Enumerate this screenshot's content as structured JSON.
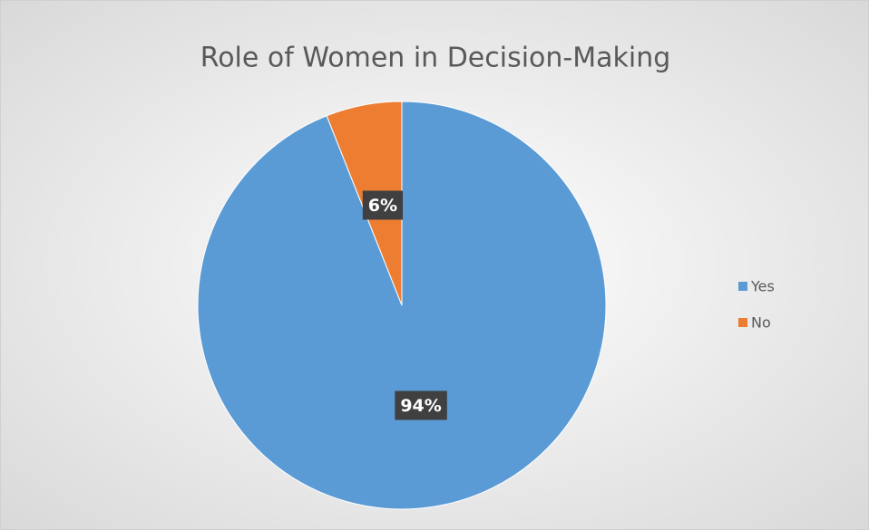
{
  "chart_data": {
    "type": "pie",
    "title": "Role of Women in Decision-Making",
    "categories": [
      "Yes",
      "No"
    ],
    "values": [
      94,
      6
    ],
    "value_labels": [
      "94%",
      "6%"
    ],
    "colors": [
      "#5b9bd5",
      "#ed7d31"
    ],
    "legend": "right"
  }
}
